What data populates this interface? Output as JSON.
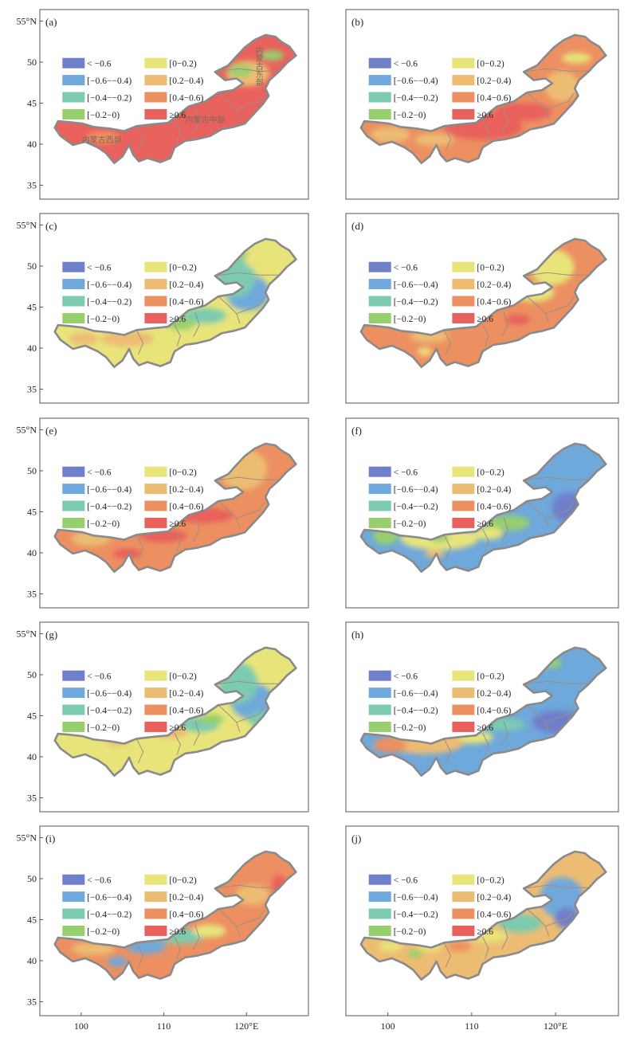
{
  "colors": {
    "lt_neg06": "#6f7fca",
    "neg06_neg04": "#6fa8db",
    "neg04_neg02": "#7ccbb0",
    "neg02_0": "#97cf6e",
    "p0_02": "#e8e47a",
    "p02_04": "#edbc73",
    "p04_06": "#ec9061",
    "ge06": "#e9615c",
    "boundary": "#8a8a8a",
    "inner_boundary": "#9a8f84"
  },
  "legend": [
    {
      "label": "< −0.6",
      "color_key": "lt_neg06"
    },
    {
      "label": "[−0.6−−0.4)",
      "color_key": "neg06_neg04"
    },
    {
      "label": "[−0.4−−0.2)",
      "color_key": "neg04_neg02"
    },
    {
      "label": "[−0.2−0)",
      "color_key": "neg02_0"
    },
    {
      "label": "[0−0.2)",
      "color_key": "p0_02"
    },
    {
      "label": "[0.2−0.4)",
      "color_key": "p02_04"
    },
    {
      "label": "[0.4−0.6)",
      "color_key": "p04_06"
    },
    {
      "label": "≥0.6",
      "color_key": "ge06"
    }
  ],
  "lat_ticks": [
    "55°N",
    "50",
    "45",
    "40",
    "35"
  ],
  "lon_ticks": [
    "100",
    "110",
    "120°E"
  ],
  "region_labels": {
    "east": "内蒙古东部",
    "central": "内蒙古中部",
    "west": "内蒙古西部"
  },
  "panels": [
    {
      "id": "(a)",
      "base": "ge06",
      "blobs": [
        [
          "p02_04",
          0.8,
          0.3,
          0.09,
          0.1
        ],
        [
          "neg02_0",
          0.9,
          0.16,
          0.05,
          0.04
        ],
        [
          "neg02_0",
          0.77,
          0.28,
          0.05,
          0.05
        ],
        [
          "p04_06",
          0.2,
          0.8,
          0.07,
          0.05
        ]
      ]
    },
    {
      "id": "(b)",
      "base": "p04_06",
      "blobs": [
        [
          "ge06",
          0.5,
          0.72,
          0.16,
          0.1
        ],
        [
          "ge06",
          0.66,
          0.6,
          0.12,
          0.07
        ],
        [
          "p02_04",
          0.82,
          0.4,
          0.07,
          0.12
        ],
        [
          "p0_02",
          0.88,
          0.18,
          0.06,
          0.04
        ],
        [
          "p02_04",
          0.12,
          0.78,
          0.08,
          0.06
        ],
        [
          "p02_04",
          0.3,
          0.82,
          0.08,
          0.05
        ]
      ]
    },
    {
      "id": "(c)",
      "base": "p0_02",
      "blobs": [
        [
          "neg06_neg04",
          0.8,
          0.42,
          0.09,
          0.14
        ],
        [
          "neg04_neg02",
          0.75,
          0.3,
          0.08,
          0.16
        ],
        [
          "neg04_neg02",
          0.62,
          0.6,
          0.09,
          0.06
        ],
        [
          "neg02_0",
          0.52,
          0.66,
          0.06,
          0.05
        ],
        [
          "p02_04",
          0.3,
          0.78,
          0.11,
          0.06
        ],
        [
          "p02_04",
          0.12,
          0.78,
          0.06,
          0.05
        ],
        [
          "neg02_0",
          0.75,
          0.12,
          0.05,
          0.04
        ],
        [
          "p0_02",
          0.84,
          0.18,
          0.05,
          0.05
        ]
      ]
    },
    {
      "id": "(d)",
      "base": "p04_06",
      "blobs": [
        [
          "p0_02",
          0.78,
          0.22,
          0.09,
          0.14
        ],
        [
          "p0_02",
          0.7,
          0.42,
          0.09,
          0.07
        ],
        [
          "ge06",
          0.9,
          0.6,
          0.04,
          0.05
        ],
        [
          "ge06",
          0.64,
          0.63,
          0.05,
          0.04
        ],
        [
          "p02_04",
          0.28,
          0.76,
          0.08,
          0.05
        ],
        [
          "p0_02",
          0.26,
          0.88,
          0.03,
          0.03
        ]
      ]
    },
    {
      "id": "(e)",
      "base": "p04_06",
      "blobs": [
        [
          "p02_04",
          0.78,
          0.2,
          0.1,
          0.16
        ],
        [
          "ge06",
          0.62,
          0.56,
          0.12,
          0.06
        ],
        [
          "ge06",
          0.45,
          0.72,
          0.1,
          0.05
        ],
        [
          "ge06",
          0.3,
          0.86,
          0.06,
          0.04
        ],
        [
          "p02_04",
          0.15,
          0.74,
          0.08,
          0.06
        ]
      ]
    },
    {
      "id": "(f)",
      "base": "neg06_neg04",
      "blobs": [
        [
          "lt_neg06",
          0.85,
          0.5,
          0.07,
          0.12
        ],
        [
          "neg02_0",
          0.6,
          0.62,
          0.09,
          0.06
        ],
        [
          "p0_02",
          0.32,
          0.74,
          0.16,
          0.09
        ],
        [
          "neg02_0",
          0.1,
          0.72,
          0.05,
          0.07
        ],
        [
          "p0_02",
          0.52,
          0.7,
          0.06,
          0.05
        ],
        [
          "p02_04",
          0.3,
          0.86,
          0.04,
          0.03
        ],
        [
          "neg02_0",
          0.32,
          0.73,
          0.04,
          0.04
        ],
        [
          "p0_02",
          0.74,
          0.1,
          0.03,
          0.03
        ]
      ]
    },
    {
      "id": "(g)",
      "base": "p0_02",
      "blobs": [
        [
          "neg06_neg04",
          0.82,
          0.42,
          0.09,
          0.14
        ],
        [
          "neg04_neg02",
          0.76,
          0.28,
          0.08,
          0.16
        ],
        [
          "neg04_neg02",
          0.6,
          0.6,
          0.08,
          0.06
        ],
        [
          "p02_04",
          0.48,
          0.66,
          0.07,
          0.05
        ],
        [
          "p02_04",
          0.26,
          0.72,
          0.05,
          0.05
        ],
        [
          "neg02_0",
          0.65,
          0.56,
          0.05,
          0.04
        ],
        [
          "neg04_neg02",
          0.86,
          0.56,
          0.06,
          0.06
        ]
      ]
    },
    {
      "id": "(h)",
      "base": "neg06_neg04",
      "blobs": [
        [
          "lt_neg06",
          0.8,
          0.58,
          0.1,
          0.09
        ],
        [
          "neg04_neg02",
          0.58,
          0.6,
          0.09,
          0.05
        ],
        [
          "p0_02",
          0.45,
          0.7,
          0.09,
          0.05
        ],
        [
          "p02_04",
          0.26,
          0.74,
          0.16,
          0.09
        ],
        [
          "p04_06",
          0.12,
          0.76,
          0.07,
          0.06
        ],
        [
          "neg02_0",
          0.78,
          0.12,
          0.04,
          0.04
        ]
      ]
    },
    {
      "id": "(i)",
      "base": "p04_06",
      "blobs": [
        [
          "ge06",
          0.93,
          0.26,
          0.03,
          0.08
        ],
        [
          "p02_04",
          0.82,
          0.34,
          0.07,
          0.08
        ],
        [
          "neg04_neg02",
          0.52,
          0.66,
          0.1,
          0.06
        ],
        [
          "neg06_neg04",
          0.38,
          0.74,
          0.08,
          0.06
        ],
        [
          "neg06_neg04",
          0.26,
          0.86,
          0.04,
          0.04
        ],
        [
          "p02_04",
          0.16,
          0.76,
          0.09,
          0.05
        ],
        [
          "p0_02",
          0.64,
          0.62,
          0.07,
          0.05
        ],
        [
          "p02_04",
          0.34,
          0.6,
          0.05,
          0.03
        ]
      ]
    },
    {
      "id": "(j)",
      "base": "p02_04",
      "blobs": [
        [
          "neg06_neg04",
          0.82,
          0.36,
          0.09,
          0.16
        ],
        [
          "lt_neg06",
          0.84,
          0.52,
          0.05,
          0.08
        ],
        [
          "neg04_neg02",
          0.65,
          0.56,
          0.09,
          0.07
        ],
        [
          "p0_02",
          0.52,
          0.66,
          0.08,
          0.05
        ],
        [
          "p04_06",
          0.4,
          0.74,
          0.05,
          0.04
        ],
        [
          "p0_02",
          0.28,
          0.74,
          0.05,
          0.04
        ],
        [
          "neg02_0",
          0.22,
          0.8,
          0.03,
          0.03
        ],
        [
          "p0_02",
          0.12,
          0.74,
          0.05,
          0.04
        ]
      ]
    }
  ]
}
